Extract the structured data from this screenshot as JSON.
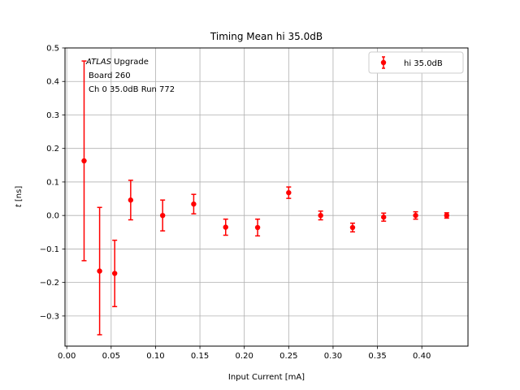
{
  "chart_data": {
    "type": "scatter",
    "title": "Timing Mean hi 35.0dB",
    "xlabel": "Input Current [mA]",
    "ylabel": "t [ns]",
    "xlim": [
      -0.002,
      0.452
    ],
    "ylim": [
      -0.39,
      0.5
    ],
    "xticks": [
      "0.00",
      "0.05",
      "0.10",
      "0.15",
      "0.20",
      "0.25",
      "0.30",
      "0.35",
      "0.40"
    ],
    "xtick_values": [
      0.0,
      0.05,
      0.1,
      0.15,
      0.2,
      0.25,
      0.3,
      0.35,
      0.4
    ],
    "yticks": [
      "−0.3",
      "−0.2",
      "−0.1",
      "0.0",
      "0.1",
      "0.2",
      "0.3",
      "0.4",
      "0.5"
    ],
    "ytick_values": [
      -0.3,
      -0.2,
      -0.1,
      0.0,
      0.1,
      0.2,
      0.3,
      0.4,
      0.5
    ],
    "grid": true,
    "legend_position": "upper-right",
    "annotation": {
      "experiment": "ATLAS",
      "line1_rest": " Upgrade",
      "line2": "Board 260",
      "line3": "Ch 0 35.0dB  Run 772"
    },
    "series": [
      {
        "name": "hi 35.0dB",
        "color": "#ff0000",
        "points": [
          {
            "x": 0.0195,
            "y": 0.163,
            "err": 0.298
          },
          {
            "x": 0.037,
            "y": -0.166,
            "err": 0.19
          },
          {
            "x": 0.054,
            "y": -0.173,
            "err": 0.099
          },
          {
            "x": 0.072,
            "y": 0.046,
            "err": 0.059
          },
          {
            "x": 0.108,
            "y": 0.0,
            "err": 0.046
          },
          {
            "x": 0.143,
            "y": 0.034,
            "err": 0.029
          },
          {
            "x": 0.179,
            "y": -0.035,
            "err": 0.024
          },
          {
            "x": 0.215,
            "y": -0.036,
            "err": 0.025
          },
          {
            "x": 0.25,
            "y": 0.068,
            "err": 0.017
          },
          {
            "x": 0.286,
            "y": 0.0,
            "err": 0.013
          },
          {
            "x": 0.322,
            "y": -0.036,
            "err": 0.013
          },
          {
            "x": 0.357,
            "y": -0.005,
            "err": 0.012
          },
          {
            "x": 0.393,
            "y": 0.0,
            "err": 0.011
          },
          {
            "x": 0.428,
            "y": 0.0,
            "err": 0.008
          }
        ]
      }
    ]
  }
}
